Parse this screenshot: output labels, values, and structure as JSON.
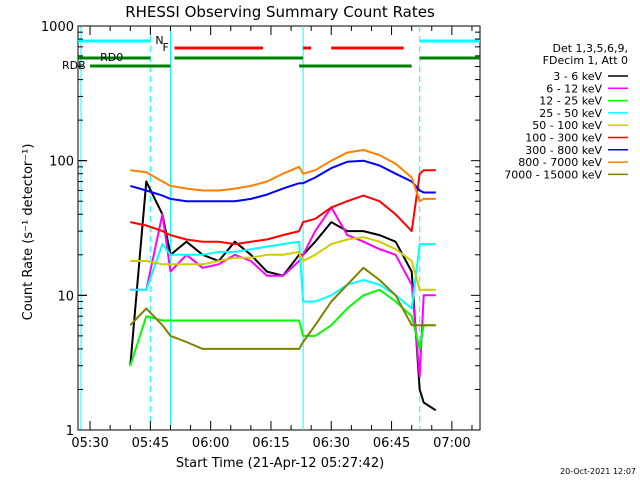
{
  "chart_data": {
    "type": "line",
    "title": "RHESSI Observing Summary Count Rates",
    "xlabel": "Start Time (21-Apr-12 05:27:42)",
    "ylabel": "Count Rate (s⁻¹ detector⁻¹)",
    "y_scale": "log",
    "ylim": [
      1,
      1000
    ],
    "xlim_minutes": [
      -3,
      97
    ],
    "x_tick_labels": [
      "05:30",
      "05:45",
      "06:00",
      "06:15",
      "06:30",
      "06:45",
      "07:00"
    ],
    "x_tick_minutes": [
      0,
      15,
      30,
      45,
      60,
      75,
      90
    ],
    "y_tick_labels": [
      "1",
      "10",
      "100",
      "1000"
    ],
    "y_tick_values": [
      1,
      10,
      100,
      1000
    ],
    "legend_header": [
      "Det 1,3,5,6,9,",
      "FDecim 1, Att 0"
    ],
    "legend_position": "right",
    "timestamp": "20-Oct-2021 12:07",
    "vlines_minutes": [
      15,
      20,
      53,
      82
    ],
    "vlines_dashed_minutes": [
      15,
      82
    ],
    "vlines_solid_minutes": [
      20,
      53
    ],
    "flag_bars": [
      {
        "label": "N",
        "color": "#00ffff",
        "segments": [
          [
            -3,
            15
          ],
          [
            82,
            97
          ]
        ]
      },
      {
        "label": "F",
        "color": "#ff0000",
        "segments": [
          [
            21,
            43
          ],
          [
            53,
            55
          ],
          [
            60,
            78
          ]
        ]
      },
      {
        "label": "RD0",
        "color": "#008000",
        "segments": [
          [
            -3,
            15
          ],
          [
            21,
            53
          ],
          [
            82,
            97
          ]
        ]
      },
      {
        "label": "RDB",
        "color": "#008000",
        "segments": [
          [
            0,
            20
          ],
          [
            52,
            80
          ]
        ]
      }
    ],
    "time_points_minutes": [
      10,
      14,
      18,
      20,
      24,
      28,
      32,
      36,
      40,
      44,
      48,
      52,
      53,
      56,
      60,
      64,
      68,
      72,
      76,
      80,
      82,
      83,
      86
    ],
    "series": [
      {
        "name": "3 - 6 keV",
        "color": "#000000",
        "values": [
          3,
          70,
          40,
          20,
          25,
          20,
          18,
          25,
          20,
          15,
          14,
          20,
          20,
          25,
          35,
          30,
          30,
          28,
          25,
          15,
          2,
          1.6,
          1.4
        ]
      },
      {
        "name": "6 - 12 keV",
        "color": "#ff00ff",
        "values": [
          11,
          11,
          40,
          15,
          20,
          16,
          17,
          20,
          18,
          14,
          14,
          18,
          20,
          30,
          45,
          28,
          25,
          22,
          20,
          12,
          2.5,
          10,
          10
        ]
      },
      {
        "name": "12 - 25 keV",
        "color": "#00ff00",
        "values": [
          3,
          7,
          6.5,
          6.5,
          6.5,
          6.5,
          6.5,
          6.5,
          6.5,
          6.5,
          6.5,
          6.5,
          5,
          5,
          6,
          8,
          10,
          11,
          9,
          7,
          4,
          6,
          6
        ]
      },
      {
        "name": "25 - 50 keV",
        "color": "#00ffff",
        "values": [
          11,
          11,
          24,
          20,
          20,
          20,
          21,
          21,
          22,
          23,
          24,
          25,
          9,
          9,
          10,
          12,
          13,
          12,
          10,
          8,
          24,
          24,
          24
        ]
      },
      {
        "name": "50 - 100 keV",
        "color": "#cccc00",
        "values": [
          18,
          18,
          17,
          17,
          17,
          17,
          18,
          19,
          19,
          20,
          20,
          21,
          18,
          20,
          24,
          26,
          27,
          25,
          22,
          18,
          11,
          11,
          11
        ]
      },
      {
        "name": "100 - 300 keV",
        "color": "#ff0000",
        "values": [
          35,
          33,
          30,
          28,
          26,
          25,
          25,
          24,
          25,
          26,
          28,
          30,
          35,
          37,
          45,
          50,
          55,
          50,
          40,
          30,
          80,
          85,
          85
        ]
      },
      {
        "name": "300 - 800 keV",
        "color": "#0000ff",
        "values": [
          65,
          60,
          55,
          52,
          50,
          50,
          50,
          50,
          52,
          56,
          62,
          68,
          68,
          75,
          88,
          98,
          100,
          92,
          80,
          70,
          60,
          58,
          58
        ]
      },
      {
        "name": "800 - 7000 keV",
        "color": "#ff8000",
        "values": [
          85,
          82,
          70,
          65,
          62,
          60,
          60,
          62,
          65,
          70,
          80,
          90,
          80,
          85,
          100,
          115,
          120,
          110,
          95,
          75,
          50,
          52,
          52
        ]
      },
      {
        "name": "7000 - 15000 keV",
        "color": "#808000",
        "values": [
          6,
          8,
          6,
          5,
          4.5,
          4,
          4,
          4,
          4,
          4,
          4,
          4,
          4.5,
          6,
          9,
          12,
          16,
          13,
          10,
          6,
          6,
          6,
          6
        ]
      }
    ]
  }
}
